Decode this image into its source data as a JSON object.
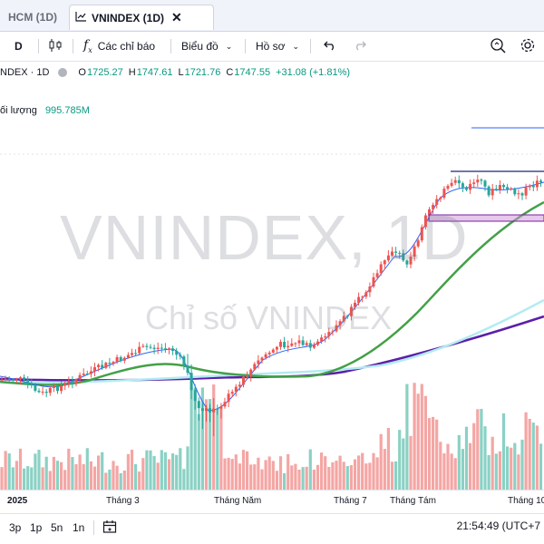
{
  "tabs": {
    "tab1_label": "HCM (1D)",
    "tab2_label": "VNINDEX (1D)",
    "tab2_icon": "chart-icon",
    "close_icon": "close-icon"
  },
  "toolbar": {
    "interval": "D",
    "candles_icon": "candles-icon",
    "indicators_icon": "fx-icon",
    "indicators_label": "Các chỉ báo",
    "chart_type_label": "Biểu đồ",
    "profile_label": "Hồ sơ",
    "undo_icon": "undo-icon",
    "redo_icon": "redo-icon",
    "snapshot_icon": "camera-icon",
    "settings_icon": "gear-icon"
  },
  "legend": {
    "symbol": "NDEX · 1D",
    "o_key": "O",
    "o": "1725.27",
    "h_key": "H",
    "h": "1747.61",
    "l_key": "L",
    "l": "1721.76",
    "c_key": "C",
    "c": "1747.55",
    "change": "+31.08 (+1.81%)"
  },
  "volume": {
    "label": "ối lượng",
    "value": "995.785M"
  },
  "watermark": {
    "line1": "VNINDEX, 1D",
    "line2": "Chỉ số VNINDEX"
  },
  "xaxis": {
    "labels": [
      "2025",
      "Tháng 3",
      "Tháng Năm",
      "Tháng 7",
      "Tháng Tám",
      "Tháng 10"
    ]
  },
  "bottom": {
    "ranges": [
      "3p",
      "1p",
      "5n",
      "1n"
    ],
    "calendar_icon": "calendar-icon",
    "time": "21:54:49 (UTC+7"
  },
  "colors": {
    "up": "#ef5350",
    "down": "#26a69a",
    "vol_up": "#f4a6a4",
    "vol_down": "#8ad1c4",
    "ma_fast": "#2962ff",
    "ma_green": "#43a047",
    "ma_cyan": "#b2ebf2",
    "ma_purple": "#5b1fa8"
  }
}
